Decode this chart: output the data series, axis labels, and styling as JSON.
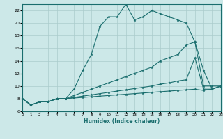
{
  "title": "",
  "xlabel": "Humidex (Indice chaleur)",
  "bg_color": "#cce8e8",
  "grid_color": "#aacccc",
  "line_color": "#1a6e6e",
  "xmin": 0,
  "xmax": 23,
  "ymin": 6,
  "ymax": 23,
  "xticks": [
    0,
    1,
    2,
    3,
    4,
    5,
    6,
    7,
    8,
    9,
    10,
    11,
    12,
    13,
    14,
    15,
    16,
    17,
    18,
    19,
    20,
    21,
    22,
    23
  ],
  "yticks": [
    6,
    8,
    10,
    12,
    14,
    16,
    18,
    20,
    22
  ],
  "line1_x": [
    0,
    1,
    2,
    3,
    4,
    5,
    6,
    7,
    8,
    9,
    10,
    11,
    12,
    13,
    14,
    15,
    16,
    17,
    18,
    19,
    20,
    21,
    22,
    23
  ],
  "line1_y": [
    8.0,
    7.0,
    7.5,
    7.5,
    8.0,
    8.0,
    9.5,
    12.5,
    15.0,
    19.5,
    21.0,
    21.0,
    23.0,
    20.5,
    21.0,
    22.0,
    21.5,
    21.0,
    20.5,
    20.0,
    17.0,
    10.0,
    10.0,
    10.0
  ],
  "line2_x": [
    0,
    1,
    2,
    3,
    4,
    5,
    6,
    7,
    8,
    9,
    10,
    11,
    12,
    13,
    14,
    15,
    16,
    17,
    18,
    19,
    20,
    21,
    22,
    23
  ],
  "line2_y": [
    8.0,
    7.0,
    7.5,
    7.5,
    8.0,
    8.0,
    8.5,
    9.0,
    9.5,
    10.0,
    10.5,
    11.0,
    11.5,
    12.0,
    12.5,
    13.0,
    14.0,
    14.5,
    15.0,
    16.5,
    17.0,
    12.5,
    9.5,
    10.0
  ],
  "line3_x": [
    0,
    1,
    2,
    3,
    4,
    5,
    6,
    7,
    8,
    9,
    10,
    11,
    12,
    13,
    14,
    15,
    16,
    17,
    18,
    19,
    20,
    21,
    22,
    23
  ],
  "line3_y": [
    8.0,
    7.0,
    7.5,
    7.5,
    8.0,
    8.0,
    8.2,
    8.4,
    8.6,
    8.8,
    9.0,
    9.2,
    9.4,
    9.6,
    9.8,
    10.0,
    10.3,
    10.5,
    10.8,
    11.0,
    14.5,
    9.5,
    9.5,
    10.0
  ],
  "line4_x": [
    0,
    1,
    2,
    3,
    4,
    5,
    6,
    7,
    8,
    9,
    10,
    11,
    12,
    13,
    14,
    15,
    16,
    17,
    18,
    19,
    20,
    21,
    22,
    23
  ],
  "line4_y": [
    8.0,
    7.0,
    7.5,
    7.5,
    8.0,
    8.0,
    8.1,
    8.2,
    8.3,
    8.4,
    8.5,
    8.6,
    8.7,
    8.8,
    8.9,
    9.0,
    9.1,
    9.2,
    9.3,
    9.4,
    9.5,
    9.3,
    9.5,
    10.0
  ]
}
